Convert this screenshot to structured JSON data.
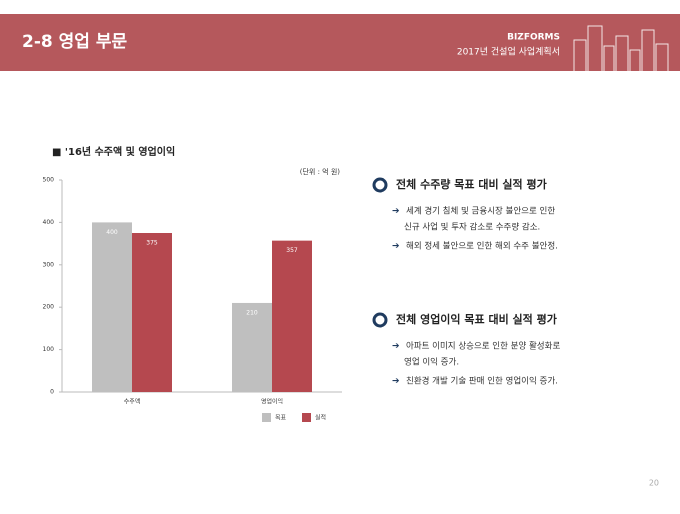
{
  "header": {
    "title": "2-8 영업 부문",
    "brand": "BIZFORMS",
    "subtitle": "2017년 건설업 사업계획서"
  },
  "chart_data": {
    "type": "bar",
    "title": "■ '16년 수주액 및 영업이익",
    "unit": "(단위 : 억 원)",
    "categories": [
      "수주액",
      "영업이익"
    ],
    "series": [
      {
        "name": "목표",
        "color": "#bfbfbf",
        "values": [
          400,
          210
        ]
      },
      {
        "name": "실적",
        "color": "#b5484f",
        "values": [
          375,
          357
        ]
      }
    ],
    "ylim": [
      0,
      500
    ],
    "yticks": [
      0,
      100,
      200,
      300,
      400,
      500
    ],
    "grid": false,
    "legend": "bottom"
  },
  "sections": [
    {
      "heading": "전체 수주량 목표 대비 실적 평가",
      "bullets": [
        [
          "세계 경기 침체 및 금융시장 불안으로 인한",
          "신규  사업 및 투자 감소로 수주량 감소."
        ],
        [
          "해외 정세 불안으로 인한 해외 수주 불안정."
        ]
      ]
    },
    {
      "heading": "전체 영업이익 목표 대비 실적 평가",
      "bullets": [
        [
          "아파트 이미지 상승으로 인한 분양 활성화로",
          "영업 이익 증가."
        ],
        [
          "친환경 개발 기술 판매 인한 영업이익 증가."
        ]
      ]
    }
  ],
  "page_number": "20"
}
